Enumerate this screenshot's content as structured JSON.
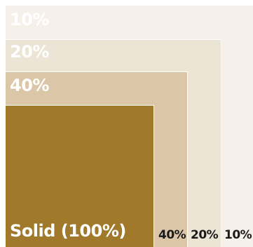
{
  "colors": {
    "tint_10": "#f6f0ea",
    "tint_20": "#ece4d5",
    "tint_40": "#dbc7a8",
    "solid": "#a0792b"
  },
  "labels": {
    "top_10": "10%",
    "top_20": "20%",
    "top_40": "40%",
    "solid": "Solid (100%)",
    "bottom_40": "40%",
    "bottom_20": "20%",
    "bottom_10": "10%"
  }
}
